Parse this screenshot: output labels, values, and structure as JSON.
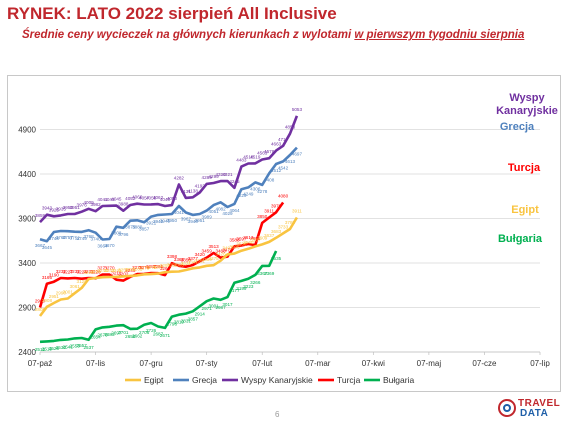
{
  "header": {
    "title": "RYNEK: LATO 2022 sierpień All Inclusive",
    "subtitle_lead": "Średnie ceny wycieczek na głównych kierunkach z wylotami ",
    "subtitle_underlined": "w pierwszym tygodniu sierpnia"
  },
  "footer": {
    "page_number": "6",
    "logo_line1": "TRAVEL",
    "logo_line2": "DATA"
  },
  "chart_data": {
    "type": "line",
    "title": "",
    "xlabel": "",
    "ylabel": "",
    "ylim": [
      2400,
      5400
    ],
    "yticks": [
      2400,
      2900,
      3400,
      3900,
      4400,
      4900
    ],
    "xticks": [
      "07-paź",
      "07-lis",
      "07-gru",
      "07-sty",
      "07-lut",
      "07-mar",
      "07-kwi",
      "07-maj",
      "07-cze",
      "07-lip"
    ],
    "x_per_tick": 8,
    "grid": true,
    "legend_position": "bottom",
    "series": [
      {
        "name": "Wyspy Kanaryjskie",
        "end_label": "Wyspy Kanaryjskie",
        "color": "#7030a0",
        "values": [
          3859,
          3943,
          3925,
          3935,
          3950,
          3951,
          3976,
          4009,
          3982,
          4041,
          4043,
          4045,
          3988,
          4052,
          4066,
          4057,
          4058,
          4062,
          4040,
          4050,
          4282,
          4131,
          4138,
          4192,
          4289,
          4299,
          4320,
          4321,
          4245,
          4483,
          4518,
          4519,
          4563,
          4578,
          4663,
          4717,
          4853,
          5053
        ],
        "point_labels": [
          "3859",
          "3943",
          "3925",
          "3935",
          "3950",
          "3951",
          "3976",
          "4009",
          "3982",
          "4041",
          "4043",
          "4045",
          "3988",
          "4052",
          "4066",
          "4057",
          "4058",
          "4062",
          "4040",
          "4050",
          "4282",
          "4131",
          "4138",
          "4192",
          "4289",
          "4299",
          "4320",
          "4321",
          "4245",
          "4483",
          "4518",
          "4519",
          "4563",
          "4578",
          "4663",
          "4717",
          "4853",
          "5053"
        ]
      },
      {
        "name": "Grecja",
        "end_label": "Grecja",
        "color": "#4f81bd",
        "values": [
          3667,
          3645,
          3748,
          3760,
          3757,
          3752,
          3749,
          3768,
          3740,
          3664,
          3670,
          3808,
          3796,
          3875,
          3880,
          3857,
          3921,
          3940,
          3945,
          3950,
          4041,
          3967,
          3940,
          3951,
          3989,
          4051,
          4082,
          4029,
          4064,
          4229,
          4249,
          4306,
          4278,
          4408,
          4512,
          4542,
          4613,
          4697
        ],
        "point_labels": [
          "3667",
          "3645",
          "3748",
          "3760",
          "3757",
          "3752",
          "3749",
          "3768",
          "3740",
          "3664",
          "3670",
          "3808",
          "3796",
          "3875",
          "3880",
          "3857",
          "3921",
          "3940",
          "3945",
          "3950",
          "4041",
          "3967",
          "3940",
          "3951",
          "3989",
          "4051",
          "4082",
          "4029",
          "4064",
          "4229",
          "4249",
          "4306",
          "4278",
          "4408",
          "4512",
          "4542",
          "4613",
          "4697"
        ]
      },
      {
        "name": "Turcja",
        "end_label": "Turcja",
        "color": "#ff0000",
        "values": [
          2900,
          3166,
          3190,
          3232,
          3227,
          3232,
          3224,
          3232,
          3228,
          3271,
          3270,
          3212,
          3202,
          3245,
          3275,
          3278,
          3287,
          3285,
          3264,
          3398,
          3368,
          3358,
          3377,
          3420,
          3459,
          3513,
          3460,
          3472,
          3588,
          3597,
          3613,
          3601,
          3850,
          3911,
          3970,
          4080
        ],
        "point_labels": [
          "2900",
          "3166",
          "3190",
          "3232",
          "3227",
          "3232",
          "3224",
          "3232",
          "3228",
          "3271",
          "3270",
          "3212",
          "3202",
          "3245",
          "3275",
          "3278",
          "3287",
          "3285",
          "3264",
          "3398",
          "3368",
          "3358",
          "3377",
          "3420",
          "3459",
          "3513",
          "3460",
          "3472",
          "3588",
          "3597",
          "3613",
          "3601",
          "3850",
          "3911",
          "3970",
          "4080"
        ]
      },
      {
        "name": "Egipt",
        "end_label": "Egipt",
        "color": "#f9c440",
        "values": [
          2805,
          2908,
          2951,
          2990,
          3001,
          3061,
          3120,
          3220,
          3231,
          3240,
          3243,
          3245,
          3250,
          3255,
          3261,
          3273,
          3275,
          3281,
          3297,
          3302,
          3305,
          3321,
          3341,
          3351,
          3369,
          3375,
          3426,
          3497,
          3506,
          3538,
          3560,
          3587,
          3609,
          3637,
          3683,
          3733,
          3782,
          3911
        ],
        "point_labels": [
          "2805",
          "2908",
          "2951",
          "2990",
          "3001",
          "3061",
          "3120",
          "3220",
          "3231",
          "3240",
          "3243",
          "3245",
          "3250",
          "3255",
          "3261",
          "3273",
          "3275",
          "3281",
          "3297",
          "3302",
          "3305",
          "3321",
          "3341",
          "3351",
          "3369",
          "3375",
          "3426",
          "3497",
          "3506",
          "3538",
          "3560",
          "3587",
          "3609",
          "3637",
          "3683",
          "3733",
          "3782",
          "3911"
        ]
      },
      {
        "name": "Bułgaria",
        "end_label": "Bułgaria",
        "color": "#00b050",
        "values": [
          2515,
          2519,
          2525,
          2536,
          2541,
          2553,
          2557,
          2537,
          2654,
          2676,
          2683,
          2697,
          2701,
          2659,
          2662,
          2706,
          2726,
          2687,
          2671,
          2798,
          2819,
          2831,
          2857,
          2914,
          2971,
          3001,
          2987,
          3017,
          3177,
          3199,
          3223,
          3266,
          3367,
          3369,
          3535
        ],
        "point_labels": [
          "2515",
          "2519",
          "2525",
          "2536",
          "2541",
          "2553",
          "2557",
          "2537",
          "2654",
          "2676",
          "2683",
          "2697",
          "2701",
          "2659",
          "2662",
          "2706",
          "2726",
          "2687",
          "2671",
          "2798",
          "2819",
          "2831",
          "2857",
          "2914",
          "2971",
          "3001",
          "2987",
          "3017",
          "3177",
          "3199",
          "3223",
          "3266",
          "3367",
          "3369",
          "3535"
        ]
      }
    ],
    "legend_order": [
      "Egipt",
      "Grecja",
      "Wyspy Kanaryjskie",
      "Turcja",
      "Bułgaria"
    ],
    "end_label_colors": {
      "Wyspy Kanaryjskie": "#7030a0",
      "Grecja": "#4f81bd",
      "Turcja": "#ff0000",
      "Egipt": "#f9c440",
      "Bułgaria": "#00b050"
    }
  }
}
